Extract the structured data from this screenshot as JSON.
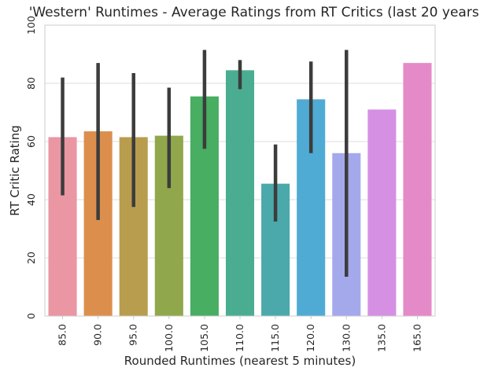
{
  "chart_data": {
    "type": "bar",
    "title": "'Western' Runtimes - Average Ratings from RT Critics (last 20 years)",
    "xlabel": "Rounded Runtimes (nearest 5 minutes)",
    "ylabel": "RT Critic Rating",
    "ylim": [
      0,
      100
    ],
    "yticks": [
      "0",
      "20",
      "40",
      "60",
      "80",
      "100"
    ],
    "grid": true,
    "categories": [
      "85.0",
      "90.0",
      "95.0",
      "100.0",
      "105.0",
      "110.0",
      "115.0",
      "120.0",
      "130.0",
      "135.0",
      "165.0"
    ],
    "values": [
      61.5,
      63.5,
      61.5,
      62,
      75.5,
      84.5,
      45.5,
      74.5,
      56,
      71,
      87
    ],
    "error_bars": [
      [
        41.5,
        82
      ],
      [
        33,
        87
      ],
      [
        37.5,
        83.5
      ],
      [
        44,
        78.5
      ],
      [
        57.5,
        91.5
      ],
      [
        78,
        88
      ],
      [
        32.5,
        59
      ],
      [
        56,
        87.5
      ],
      [
        13.5,
        91.5
      ],
      null,
      null
    ],
    "colors": [
      "#ea96a3",
      "#dc8f4d",
      "#b99d4e",
      "#91a74b",
      "#47ae62",
      "#4aad92",
      "#4ba9ac",
      "#4fabd3",
      "#a4a9ec",
      "#d590e3",
      "#e58ac8"
    ]
  }
}
